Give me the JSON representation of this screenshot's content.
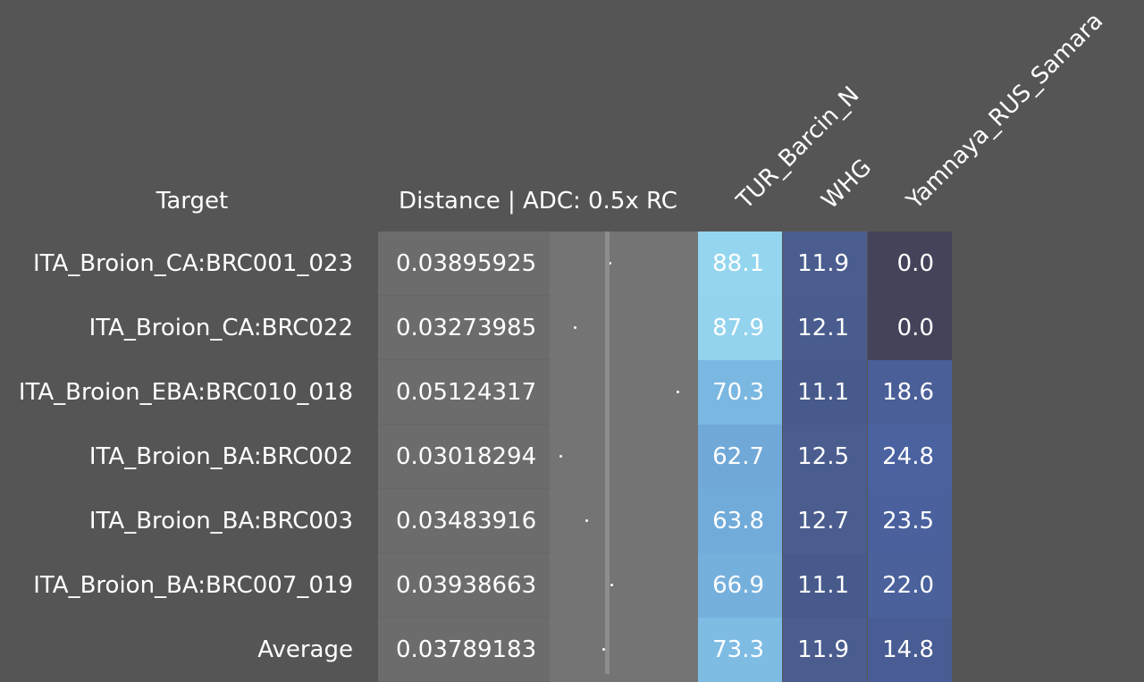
{
  "headers": {
    "target": "Target",
    "distance": "Distance | ADC: 0.5x RC",
    "components": [
      "TUR_Barcin_N",
      "WHG",
      "Yamnaya_RUS_Samara"
    ]
  },
  "rows": [
    {
      "target": "ITA_Broion_CA:BRC001_023",
      "distance": "0.03895925",
      "values": [
        "88.1",
        "11.9",
        "0.0"
      ],
      "colors": [
        "#94d6ef",
        "#4a5d8e",
        "#43445a"
      ]
    },
    {
      "target": "ITA_Broion_CA:BRC022",
      "distance": "0.03273985",
      "values": [
        "87.9",
        "12.1",
        "0.0"
      ],
      "colors": [
        "#93d3ee",
        "#495c8d",
        "#43445a"
      ]
    },
    {
      "target": "ITA_Broion_EBA:BRC010_018",
      "distance": "0.05124317",
      "values": [
        "70.3",
        "11.1",
        "18.6"
      ],
      "colors": [
        "#7ab7e1",
        "#485a8b",
        "#4a5f98"
      ]
    },
    {
      "target": "ITA_Broion_BA:BRC002",
      "distance": "0.03018294",
      "values": [
        "62.7",
        "12.5",
        "24.8"
      ],
      "colors": [
        "#70a9d8",
        "#4a5d8e",
        "#4a62a0"
      ]
    },
    {
      "target": "ITA_Broion_BA:BRC003",
      "distance": "0.03483916",
      "values": [
        "63.8",
        "12.7",
        "23.5"
      ],
      "colors": [
        "#71abda",
        "#4a5d8e",
        "#4a619e"
      ]
    },
    {
      "target": "ITA_Broion_BA:BRC007_019",
      "distance": "0.03938663",
      "values": [
        "66.9",
        "11.1",
        "22.0"
      ],
      "colors": [
        "#75b0dd",
        "#485a8b",
        "#4a619c"
      ]
    },
    {
      "target": "Average",
      "distance": "0.03789183",
      "values": [
        "73.3",
        "11.9",
        "14.8"
      ],
      "colors": [
        "#7ebce4",
        "#4a5d8e",
        "#495d94"
      ]
    }
  ],
  "distance_scale": {
    "min": 0.0285,
    "max": 0.055,
    "reference": 0.0387
  }
}
